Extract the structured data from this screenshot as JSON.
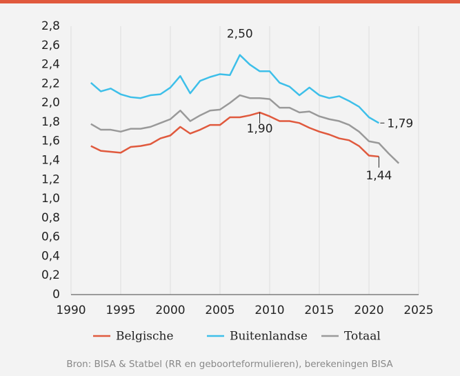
{
  "chart_data": {
    "type": "line",
    "x": [
      1992,
      1993,
      1994,
      1995,
      1996,
      1997,
      1998,
      1999,
      2000,
      2001,
      2002,
      2003,
      2004,
      2005,
      2006,
      2007,
      2008,
      2009,
      2010,
      2011,
      2012,
      2013,
      2014,
      2015,
      2016,
      2017,
      2018,
      2019,
      2020,
      2021,
      2022,
      2023
    ],
    "series": [
      {
        "name": "Belgische",
        "color": "#e0593d",
        "values": [
          1.55,
          1.5,
          1.49,
          1.48,
          1.54,
          1.55,
          1.57,
          1.63,
          1.66,
          1.75,
          1.68,
          1.72,
          1.77,
          1.77,
          1.85,
          1.85,
          1.87,
          1.9,
          1.86,
          1.81,
          1.81,
          1.79,
          1.74,
          1.7,
          1.67,
          1.63,
          1.61,
          1.55,
          1.45,
          1.44,
          null,
          null
        ]
      },
      {
        "name": "Buitenlandse",
        "color": "#3dbfe9",
        "values": [
          2.21,
          2.12,
          2.15,
          2.09,
          2.06,
          2.05,
          2.08,
          2.09,
          2.16,
          2.28,
          2.1,
          2.23,
          2.27,
          2.3,
          2.29,
          2.5,
          2.4,
          2.33,
          2.33,
          2.21,
          2.17,
          2.08,
          2.16,
          2.08,
          2.05,
          2.07,
          2.02,
          1.96,
          1.85,
          1.79,
          null,
          null
        ]
      },
      {
        "name": "Totaal",
        "color": "#999999",
        "values": [
          1.78,
          1.72,
          1.72,
          1.7,
          1.73,
          1.73,
          1.75,
          1.79,
          1.83,
          1.92,
          1.81,
          1.87,
          1.92,
          1.93,
          2.0,
          2.08,
          2.05,
          2.05,
          2.04,
          1.95,
          1.95,
          1.9,
          1.91,
          1.86,
          1.83,
          1.81,
          1.77,
          1.7,
          1.6,
          1.58,
          1.47,
          1.37
        ]
      }
    ],
    "xlim": [
      1990,
      2025
    ],
    "xticks": [
      1990,
      1995,
      2000,
      2005,
      2010,
      2015,
      2020,
      2025
    ],
    "ylim": [
      0,
      2.8
    ],
    "yticks": [
      0,
      {
        "value": 0.2,
        "label": "0,2"
      },
      {
        "value": 0.4,
        "label": "0,4"
      },
      {
        "value": 0.6,
        "label": "0,6"
      },
      {
        "value": 0.8,
        "label": "0,8"
      },
      {
        "value": 1.0,
        "label": "1,0"
      },
      {
        "value": 1.2,
        "label": "1,2"
      },
      {
        "value": 1.4,
        "label": "1,4"
      },
      {
        "value": 1.6,
        "label": "1,6"
      },
      {
        "value": 1.8,
        "label": "1,8"
      },
      {
        "value": 2.0,
        "label": "2,0"
      },
      {
        "value": 2.2,
        "label": "2,2"
      },
      {
        "value": 2.4,
        "label": "2,4"
      },
      {
        "value": 2.6,
        "label": "2,6"
      },
      {
        "value": 2.8,
        "label": "2,8"
      }
    ],
    "grid": "x",
    "annotations": [
      {
        "x": 2007,
        "y": 2.5,
        "label": "2,50"
      },
      {
        "x": 2009,
        "y": 1.9,
        "label": "1,90"
      },
      {
        "x": 2021,
        "y": 1.79,
        "label": "1,79"
      },
      {
        "x": 2021,
        "y": 1.44,
        "label": "1,44"
      }
    ],
    "source": "Bron: BISA & Statbel (RR en geboorteformulieren), berekeningen BISA"
  }
}
